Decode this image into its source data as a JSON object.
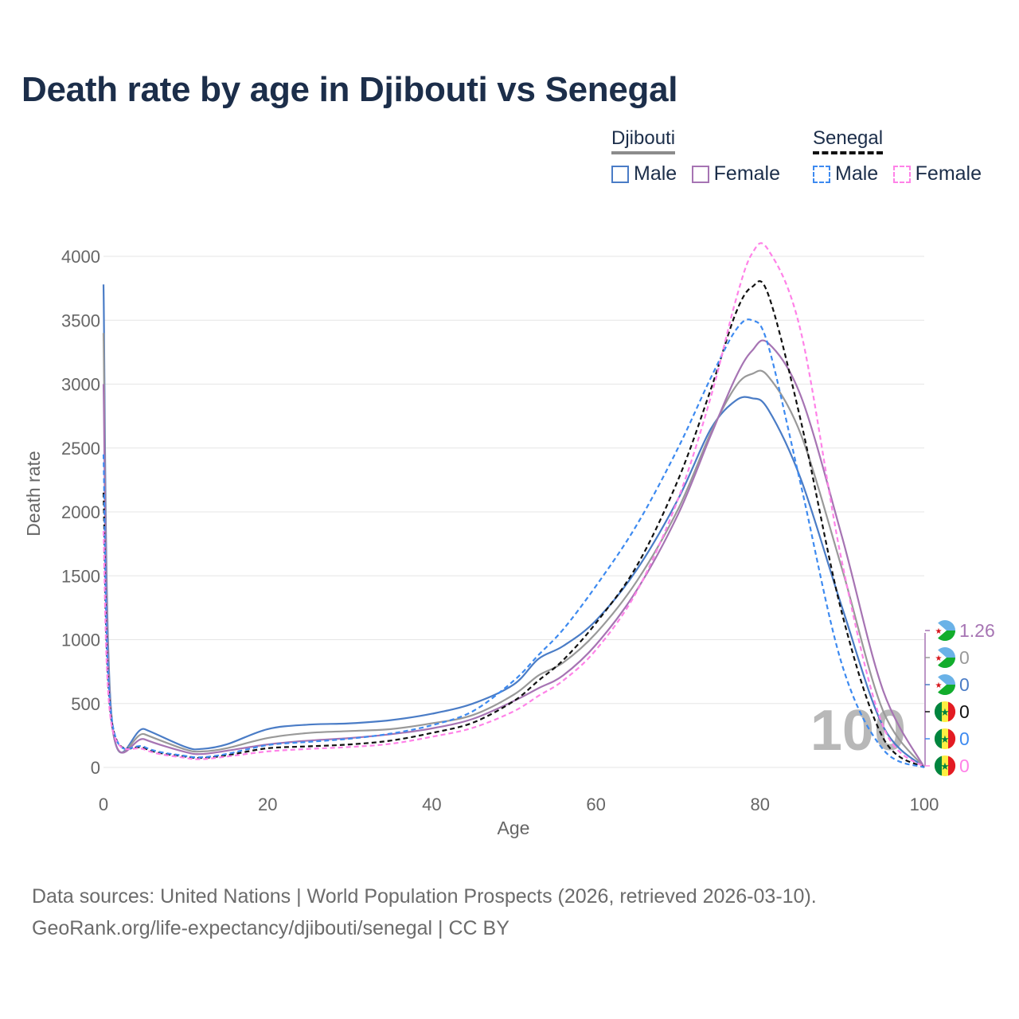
{
  "title": "Death rate by age in Djibouti vs Senegal",
  "legend": {
    "groups": [
      {
        "name": "Djibouti",
        "style": "solid",
        "items": [
          {
            "label": "Male",
            "color": "#4a7cc6"
          },
          {
            "label": "Female",
            "color": "#a674b3"
          }
        ]
      },
      {
        "name": "Senegal",
        "style": "dashed",
        "items": [
          {
            "label": "Male",
            "color": "#3d8af0"
          },
          {
            "label": "Female",
            "color": "#ff82e8"
          }
        ]
      }
    ]
  },
  "chart_data": {
    "type": "line",
    "xlabel": "Age",
    "ylabel": "Death rate",
    "xlim": [
      0,
      100
    ],
    "ylim": [
      0,
      4000
    ],
    "xticks": [
      0,
      20,
      40,
      60,
      80,
      100
    ],
    "yticks": [
      0,
      500,
      1000,
      1500,
      2000,
      2500,
      3000,
      3500,
      4000
    ],
    "grid": true,
    "annotation": "100",
    "series": [
      {
        "name": "Djibouti Male",
        "color": "#4a7cc6",
        "dash": false,
        "x": [
          0,
          1,
          5,
          10,
          12,
          15,
          20,
          25,
          30,
          35,
          40,
          45,
          50,
          53,
          56,
          60,
          65,
          70,
          74,
          77,
          79,
          81,
          85,
          90,
          95,
          100
        ],
        "y": [
          3780,
          390,
          300,
          160,
          145,
          180,
          300,
          335,
          345,
          370,
          420,
          500,
          650,
          850,
          950,
          1150,
          1550,
          2100,
          2650,
          2870,
          2890,
          2800,
          2250,
          1250,
          320,
          0
        ]
      },
      {
        "name": "Djibouti Both",
        "color": "#999999",
        "dash": false,
        "x": [
          0,
          1,
          5,
          10,
          12,
          15,
          20,
          25,
          30,
          35,
          40,
          45,
          50,
          53,
          56,
          60,
          65,
          70,
          74,
          77,
          79,
          81,
          85,
          90,
          95,
          100
        ],
        "y": [
          3400,
          370,
          260,
          140,
          125,
          150,
          230,
          270,
          285,
          300,
          345,
          410,
          570,
          720,
          820,
          1050,
          1460,
          2020,
          2620,
          2980,
          3080,
          3060,
          2600,
          1550,
          440,
          0
        ]
      },
      {
        "name": "Djibouti Female",
        "color": "#a674b3",
        "dash": false,
        "x": [
          0,
          1,
          5,
          10,
          12,
          15,
          20,
          25,
          30,
          35,
          40,
          45,
          50,
          53,
          56,
          60,
          65,
          70,
          74,
          77,
          79,
          81,
          85,
          90,
          95,
          100
        ],
        "y": [
          3000,
          350,
          220,
          120,
          105,
          130,
          180,
          210,
          230,
          260,
          305,
          380,
          520,
          620,
          720,
          960,
          1390,
          1980,
          2600,
          3050,
          3260,
          3320,
          2900,
          1800,
          600,
          0
        ]
      },
      {
        "name": "Senegal Both",
        "color": "#111111",
        "dash": true,
        "x": [
          0,
          1,
          5,
          10,
          12,
          15,
          20,
          25,
          30,
          35,
          40,
          45,
          50,
          53,
          56,
          60,
          65,
          70,
          74,
          77,
          79,
          81,
          85,
          90,
          95,
          100
        ],
        "y": [
          2150,
          360,
          150,
          85,
          75,
          95,
          150,
          165,
          180,
          210,
          270,
          350,
          520,
          680,
          840,
          1130,
          1580,
          2250,
          2960,
          3550,
          3760,
          3700,
          2700,
          1200,
          230,
          0
        ]
      },
      {
        "name": "Senegal Male",
        "color": "#3d8af0",
        "dash": true,
        "x": [
          0,
          1,
          5,
          10,
          12,
          15,
          20,
          25,
          30,
          35,
          40,
          45,
          50,
          53,
          56,
          60,
          65,
          70,
          74,
          77,
          79,
          81,
          85,
          90,
          95,
          100
        ],
        "y": [
          2450,
          380,
          160,
          90,
          80,
          105,
          175,
          200,
          225,
          265,
          330,
          440,
          680,
          880,
          1080,
          1420,
          1900,
          2500,
          3050,
          3420,
          3500,
          3300,
          2200,
          800,
          140,
          0
        ]
      },
      {
        "name": "Senegal Female",
        "color": "#ff82e8",
        "dash": true,
        "x": [
          0,
          1,
          5,
          10,
          12,
          15,
          20,
          25,
          30,
          35,
          40,
          45,
          50,
          53,
          56,
          60,
          65,
          70,
          74,
          77,
          79,
          81,
          85,
          90,
          95,
          100
        ],
        "y": [
          1850,
          330,
          140,
          75,
          65,
          85,
          125,
          145,
          160,
          185,
          240,
          310,
          440,
          560,
          680,
          920,
          1380,
          2100,
          2900,
          3650,
          4020,
          4050,
          3400,
          1600,
          320,
          0
        ]
      }
    ],
    "end_labels": [
      {
        "value": "1.26",
        "color": "#a674b3",
        "country": "Djibouti"
      },
      {
        "value": "0",
        "color": "#999999",
        "country": "Djibouti"
      },
      {
        "value": "0",
        "color": "#4a7cc6",
        "country": "Djibouti"
      },
      {
        "value": "0",
        "color": "#111111",
        "country": "Senegal"
      },
      {
        "value": "0",
        "color": "#3d8af0",
        "country": "Senegal"
      },
      {
        "value": "0",
        "color": "#ff82e8",
        "country": "Senegal"
      }
    ]
  },
  "source": {
    "line1": "Data sources: United Nations | World Population Prospects (2026, retrieved 2026-03-10).",
    "line2": "GeoRank.org/life-expectancy/djibouti/senegal | CC BY"
  }
}
